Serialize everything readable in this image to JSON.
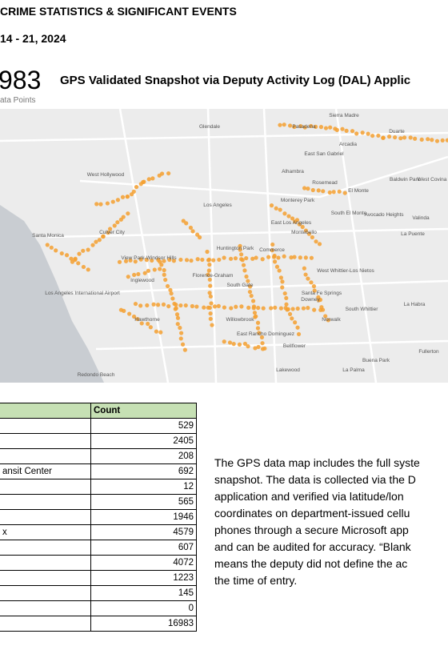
{
  "header": {
    "title": "CRIME STATISTICS & SIGNIFICANT EVENTS",
    "date": "14 - 21, 2024"
  },
  "snapshot": {
    "total": "983",
    "total_caption": "ata Points",
    "heading": "GPS Validated Snapshot via Deputy Activity Log (DAL) Applic"
  },
  "map": {
    "labels": [
      "Glendale",
      "Pasadena",
      "Sierra Madre",
      "Duarte",
      "Arcadia",
      "East San Gabriel",
      "West Hollywood",
      "Alhambra",
      "Rosemead",
      "El Monte",
      "Baldwin Park",
      "West Covina",
      "Los Angeles",
      "Monterey Park",
      "South El Monte",
      "Avocado Heights",
      "Valinda",
      "Culver City",
      "East Los Angeles",
      "Montebello",
      "La Puente",
      "Santa Monica",
      "View Park-Windsor Hills",
      "Commerce",
      "Huntington Park",
      "West Whittier-Los Nietos",
      "Inglewood",
      "Florence-Graham",
      "South Gate",
      "Los Angeles International Airport",
      "Santa Fe Springs",
      "Downey",
      "South Whittier",
      "La Habra",
      "Hawthorne",
      "Willowbrook",
      "Norwalk",
      "East Rancho Dominguez",
      "Bellflower",
      "Fullerton",
      "Redondo Beach",
      "Lakewood",
      "La Palma",
      "Buena Park"
    ]
  },
  "table": {
    "count_header": "Count",
    "rows": [
      {
        "count": "529"
      },
      {
        "count": "2405"
      },
      {
        "count": "208"
      },
      {
        "label": "ansit Center",
        "count": "692"
      },
      {
        "count": "12"
      },
      {
        "count": "565"
      },
      {
        "count": "1946"
      },
      {
        "label": "x",
        "count": "4579"
      },
      {
        "count": "607"
      },
      {
        "count": "4072"
      },
      {
        "count": "1223"
      },
      {
        "count": "145"
      },
      {
        "count": "0"
      },
      {
        "count": "16983"
      }
    ]
  },
  "paragraph": {
    "lines": [
      "The GPS data map includes the full syste",
      "snapshot. The data is collected via the D",
      "application and verified via latitude/lon",
      "coordinates on department-issued cellu",
      "phones through a secure Microsoft app",
      "and can be audited for accuracy. “Blank",
      "means the deputy did not define the ac",
      "the time of entry."
    ]
  }
}
